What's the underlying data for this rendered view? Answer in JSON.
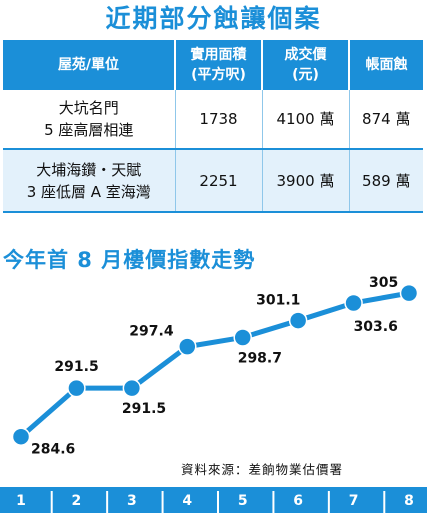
{
  "title": "近期部分蝕讓個案",
  "table": {
    "headers": [
      "屋苑/單位",
      "實用面積\n(平方呎)",
      "成交價\n(元)",
      "帳面蝕"
    ],
    "rows": [
      {
        "name": [
          "大坑名門",
          "5 座高層相連"
        ],
        "area": "1738",
        "price": "4100 萬",
        "loss": "874 萬"
      },
      {
        "name": [
          "大埔海鑽・天賦",
          "3 座低層 A 室海灣"
        ],
        "area": "2251",
        "price": "3900 萬",
        "loss": "589 萬"
      }
    ]
  },
  "source": "資料來源：差餉物業估價署",
  "colors": {
    "accent": "#1b8fd8",
    "row_alt": "#e3f1fb",
    "marker": "#1b8fd8"
  },
  "chart_data": {
    "type": "line",
    "title": "今年首 8 月樓價指數走勢",
    "x": [
      "1",
      "2",
      "3",
      "4",
      "5",
      "6",
      "7",
      "8"
    ],
    "series": [
      {
        "values": [
          284.6,
          291.5,
          291.5,
          297.4,
          298.7,
          301.1,
          303.6,
          305
        ]
      }
    ],
    "data_labels": [
      "284.6",
      "291.5",
      "291.5",
      "297.4",
      "298.7",
      "301.1",
      "303.6",
      "305"
    ],
    "ylim": [
      282,
      308
    ],
    "grid": false,
    "legend": "none"
  }
}
